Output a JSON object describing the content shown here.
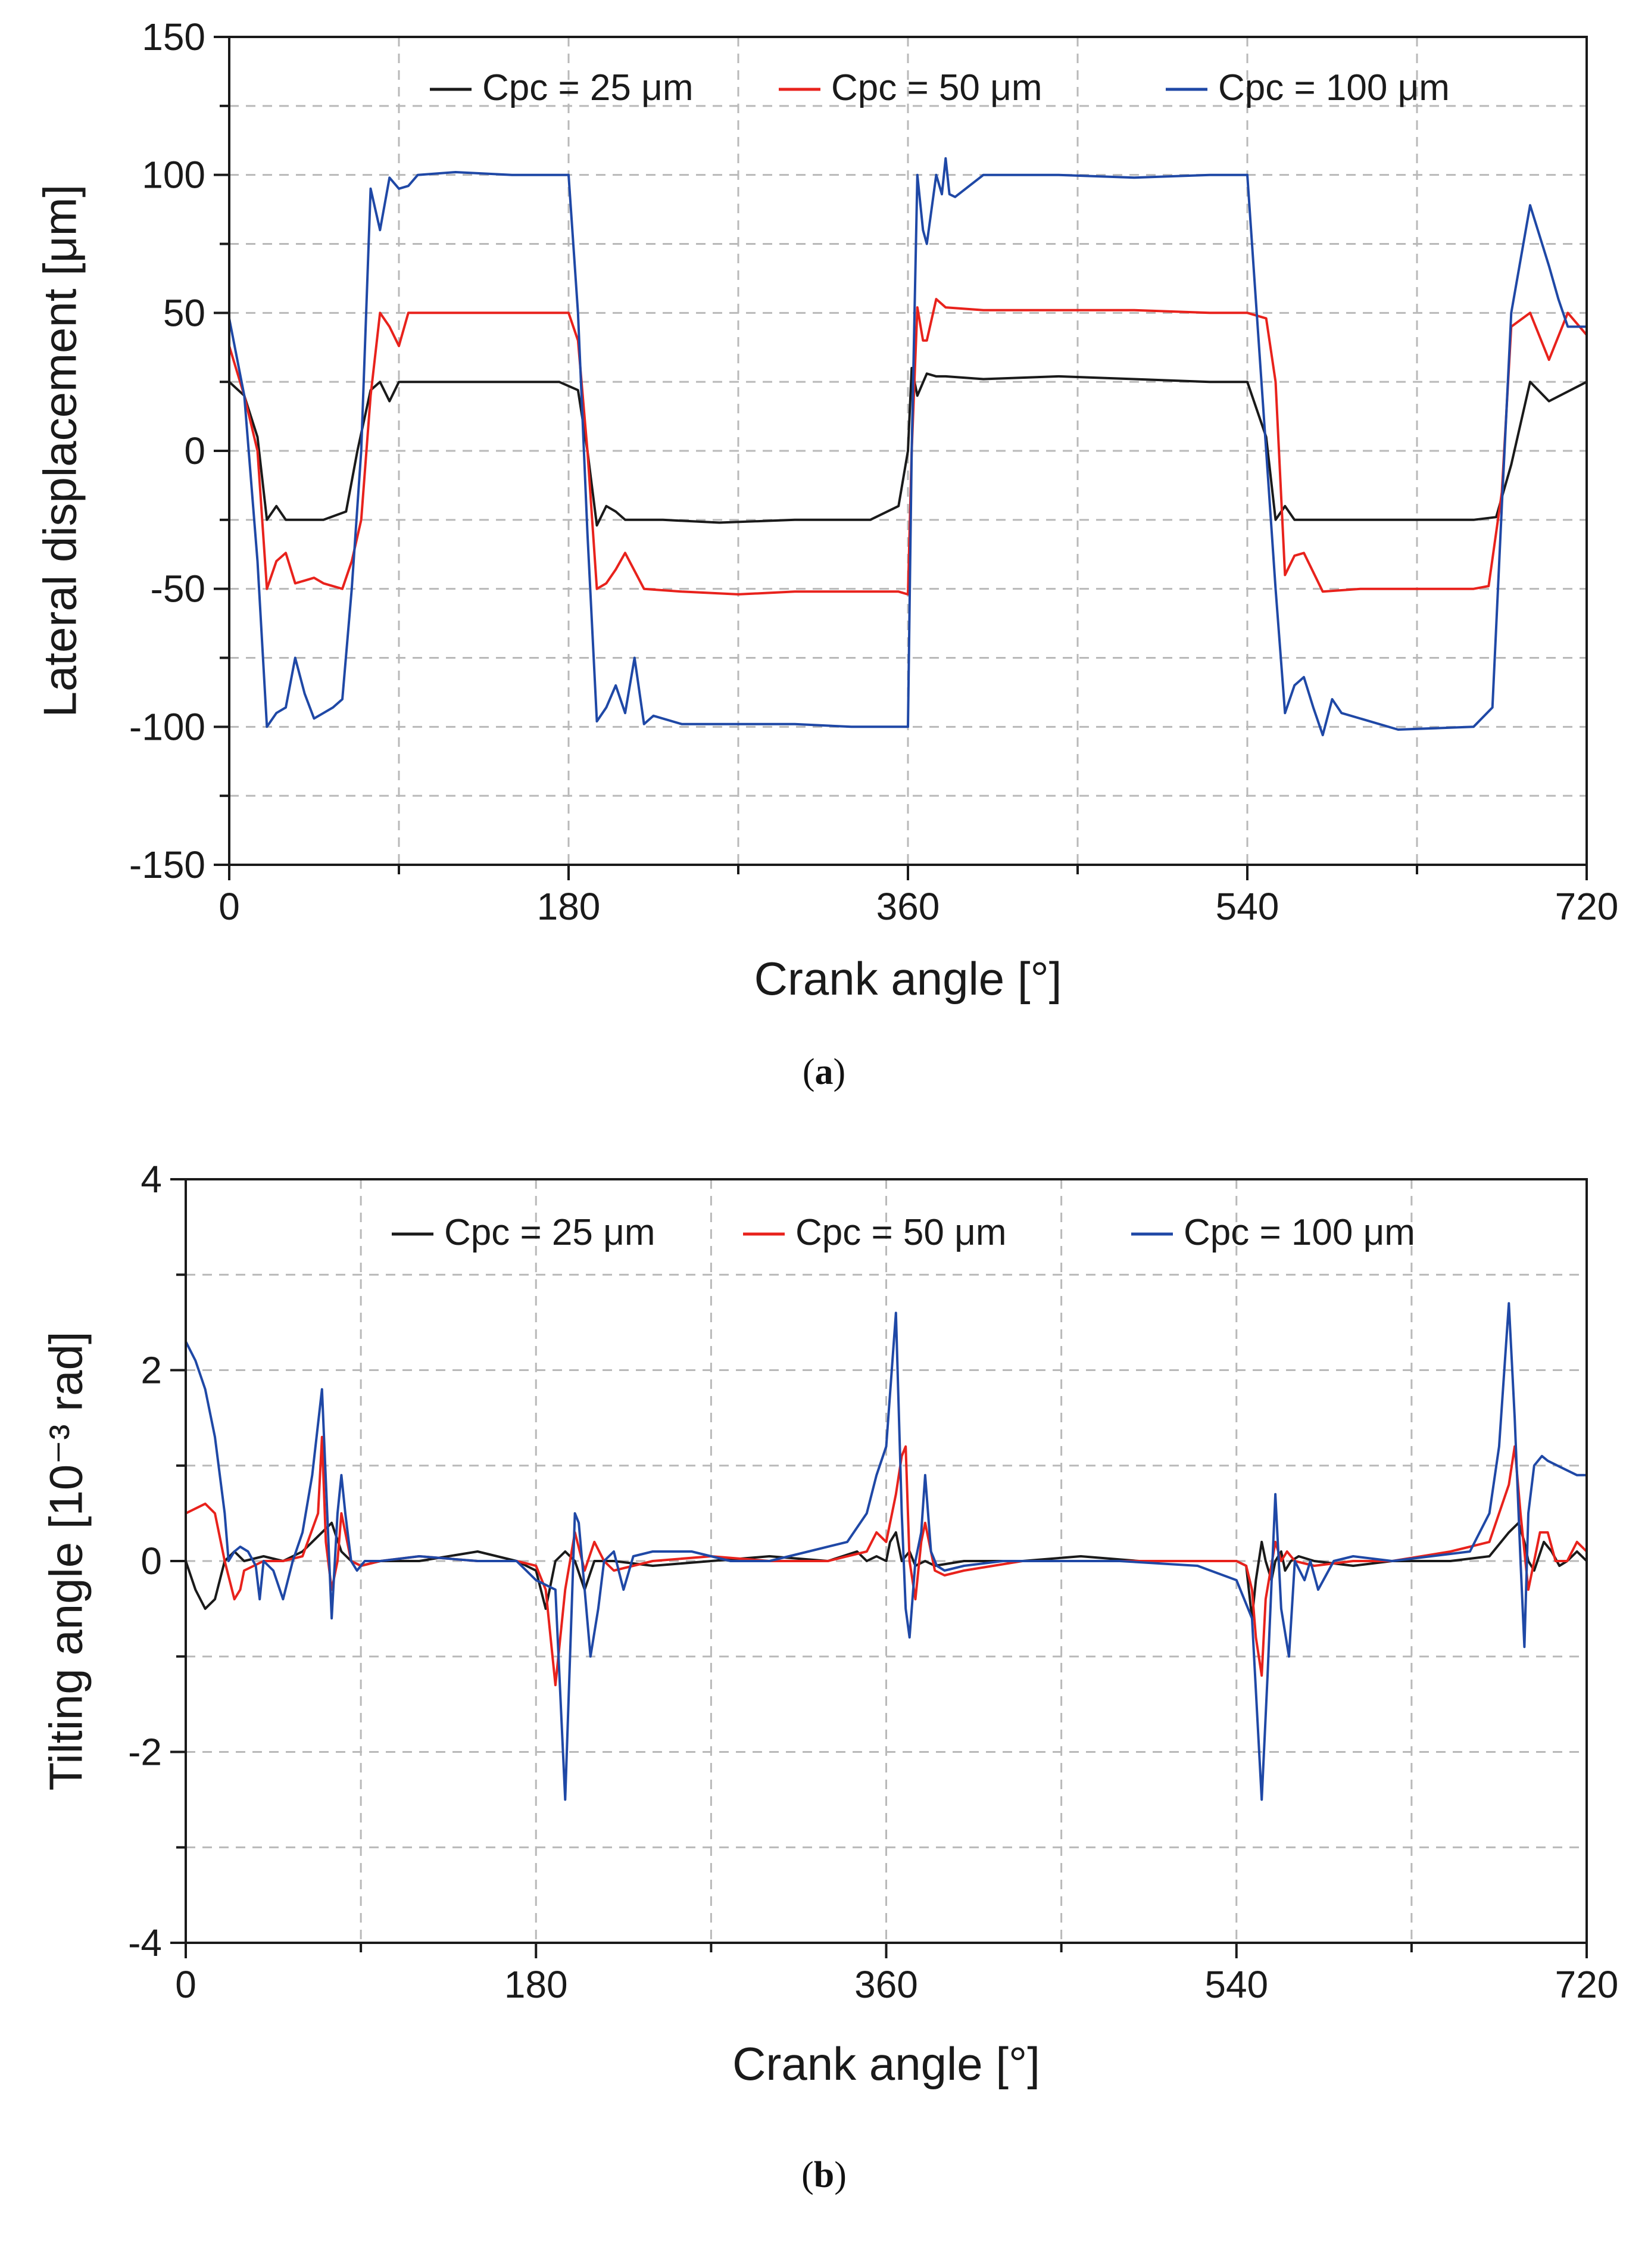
{
  "chart_data": [
    {
      "type": "line",
      "xlabel": "Crank angle [°]",
      "ylabel": "Lateral displacement [μm]",
      "caption_label": "a",
      "xlim": [
        0,
        720
      ],
      "ylim": [
        -150,
        150
      ],
      "xticks": [
        0,
        180,
        360,
        540,
        720
      ],
      "xtick_labels": [
        "0",
        "180",
        "360",
        "540",
        "720"
      ],
      "yticks": [
        -150,
        -100,
        -50,
        0,
        50,
        100,
        150
      ],
      "ytick_labels": [
        "-150",
        "-100",
        "-50",
        "0",
        "50",
        "100",
        "150"
      ],
      "grid": true,
      "legend": "top-center",
      "series": [
        {
          "name": "Cpc = 25 μm",
          "color": "#1a1a1a",
          "x": [
            0,
            8,
            15,
            20,
            25,
            30,
            40,
            50,
            62,
            68,
            75,
            80,
            85,
            90,
            120,
            150,
            175,
            185,
            190,
            195,
            200,
            205,
            210,
            230,
            260,
            300,
            340,
            355,
            360,
            362,
            365,
            370,
            375,
            380,
            400,
            440,
            480,
            520,
            540,
            550,
            555,
            560,
            565,
            570,
            580,
            620,
            660,
            672,
            680,
            690,
            700,
            720
          ],
          "y": [
            25,
            20,
            5,
            -25,
            -20,
            -25,
            -25,
            -25,
            -22,
            0,
            22,
            25,
            18,
            25,
            25,
            25,
            25,
            22,
            0,
            -27,
            -20,
            -22,
            -25,
            -25,
            -26,
            -25,
            -25,
            -20,
            0,
            30,
            20,
            28,
            27,
            27,
            26,
            27,
            26,
            25,
            25,
            5,
            -25,
            -20,
            -25,
            -25,
            -25,
            -25,
            -25,
            -24,
            -5,
            25,
            18,
            25
          ]
        },
        {
          "name": "Cpc = 50 μm",
          "color": "#e8221c",
          "x": [
            0,
            8,
            15,
            20,
            25,
            30,
            35,
            40,
            45,
            50,
            60,
            65,
            70,
            75,
            80,
            85,
            90,
            95,
            120,
            150,
            180,
            185,
            190,
            195,
            200,
            205,
            210,
            220,
            240,
            270,
            300,
            330,
            355,
            360,
            362,
            365,
            368,
            370,
            375,
            380,
            400,
            440,
            480,
            520,
            540,
            550,
            555,
            560,
            565,
            570,
            580,
            600,
            640,
            660,
            668,
            675,
            680,
            690,
            700,
            710,
            720
          ],
          "y": [
            38,
            20,
            0,
            -50,
            -40,
            -37,
            -48,
            -47,
            -46,
            -48,
            -50,
            -40,
            -25,
            20,
            50,
            45,
            38,
            50,
            50,
            50,
            50,
            40,
            0,
            -50,
            -48,
            -43,
            -37,
            -50,
            -51,
            -52,
            -51,
            -51,
            -51,
            -52,
            0,
            52,
            40,
            40,
            55,
            52,
            51,
            51,
            51,
            50,
            50,
            48,
            25,
            -45,
            -38,
            -37,
            -51,
            -50,
            -50,
            -50,
            -49,
            -15,
            45,
            50,
            33,
            50,
            42
          ]
        },
        {
          "name": "Cpc = 100 μm",
          "color": "#1f48a6",
          "x": [
            0,
            8,
            15,
            20,
            25,
            30,
            35,
            40,
            45,
            50,
            55,
            60,
            65,
            70,
            75,
            80,
            85,
            90,
            95,
            100,
            120,
            150,
            180,
            185,
            190,
            195,
            200,
            205,
            210,
            215,
            220,
            225,
            230,
            240,
            270,
            300,
            330,
            355,
            360,
            362,
            365,
            368,
            370,
            375,
            378,
            380,
            382,
            385,
            400,
            440,
            480,
            520,
            540,
            545,
            550,
            555,
            560,
            565,
            570,
            575,
            580,
            585,
            590,
            620,
            660,
            670,
            675,
            680,
            690,
            700,
            705,
            710,
            720
          ],
          "y": [
            48,
            20,
            -40,
            -100,
            -95,
            -93,
            -75,
            -88,
            -97,
            -95,
            -93,
            -90,
            -50,
            0,
            95,
            80,
            99,
            95,
            96,
            100,
            101,
            100,
            100,
            50,
            -30,
            -98,
            -93,
            -85,
            -95,
            -75,
            -99,
            -96,
            -97,
            -99,
            -99,
            -99,
            -100,
            -100,
            -100,
            0,
            100,
            80,
            75,
            100,
            93,
            106,
            93,
            92,
            100,
            100,
            99,
            100,
            100,
            50,
            0,
            -50,
            -95,
            -85,
            -82,
            -93,
            -103,
            -90,
            -95,
            -101,
            -100,
            -93,
            -20,
            50,
            89,
            67,
            55,
            45,
            45
          ]
        }
      ]
    },
    {
      "type": "line",
      "xlabel": "Crank angle [°]",
      "ylabel": "Tilting angle [10⁻³ rad]",
      "caption_label": "b",
      "xlim": [
        0,
        720
      ],
      "ylim": [
        -4,
        4
      ],
      "xticks": [
        0,
        180,
        360,
        540,
        720
      ],
      "xtick_labels": [
        "0",
        "180",
        "360",
        "540",
        "720"
      ],
      "yticks": [
        -4,
        -2,
        0,
        2,
        4
      ],
      "ytick_labels": [
        "-4",
        "-2",
        "0",
        "2",
        "4"
      ],
      "grid": true,
      "legend": "top-center",
      "series": [
        {
          "name": "Cpc = 25 μm",
          "color": "#1a1a1a",
          "x": [
            0,
            5,
            10,
            15,
            20,
            25,
            30,
            40,
            50,
            60,
            70,
            75,
            80,
            85,
            90,
            100,
            120,
            150,
            170,
            180,
            185,
            190,
            195,
            200,
            205,
            210,
            220,
            240,
            270,
            300,
            330,
            345,
            350,
            355,
            360,
            362,
            365,
            368,
            372,
            375,
            380,
            385,
            400,
            430,
            460,
            490,
            520,
            540,
            545,
            548,
            550,
            553,
            555,
            558,
            560,
            563,
            565,
            568,
            572,
            580,
            600,
            620,
            650,
            670,
            680,
            685,
            688,
            690,
            693,
            698,
            702,
            706,
            710,
            715,
            720
          ],
          "y": [
            0,
            -0.3,
            -0.5,
            -0.4,
            0,
            0.1,
            0,
            0.05,
            0,
            0.1,
            0.3,
            0.4,
            0.1,
            0,
            -0.05,
            0,
            0,
            0.1,
            0,
            -0.1,
            -0.5,
            0,
            0.1,
            0,
            -0.3,
            0,
            0,
            -0.05,
            0,
            0.05,
            0,
            0.1,
            0,
            0.05,
            0,
            0.2,
            0.3,
            0,
            0.1,
            -0.05,
            0,
            -0.05,
            0,
            0,
            0.05,
            0,
            0,
            0,
            -0.05,
            -0.6,
            -0.2,
            0.2,
            0,
            -0.2,
            0,
            0.1,
            -0.1,
            0,
            0.05,
            0,
            -0.05,
            0,
            0,
            0.05,
            0.3,
            0.4,
            0.2,
            0,
            -0.1,
            0.2,
            0.1,
            -0.05,
            0,
            0.1,
            0
          ]
        },
        {
          "name": "Cpc = 50 μm",
          "color": "#e8221c",
          "x": [
            0,
            10,
            15,
            20,
            25,
            28,
            30,
            40,
            50,
            60,
            68,
            70,
            72,
            75,
            78,
            80,
            85,
            90,
            100,
            120,
            150,
            170,
            180,
            185,
            190,
            195,
            200,
            205,
            210,
            215,
            220,
            240,
            270,
            300,
            330,
            350,
            355,
            360,
            365,
            368,
            370,
            372,
            375,
            378,
            380,
            385,
            390,
            400,
            430,
            460,
            490,
            520,
            540,
            545,
            548,
            550,
            553,
            555,
            560,
            563,
            566,
            570,
            580,
            600,
            620,
            650,
            670,
            675,
            680,
            683,
            686,
            690,
            693,
            696,
            700,
            704,
            710,
            715,
            720
          ],
          "y": [
            0.5,
            0.6,
            0.5,
            0,
            -0.4,
            -0.3,
            -0.1,
            0,
            0,
            0.05,
            0.5,
            1.3,
            0.2,
            -0.3,
            0,
            0.5,
            0,
            -0.05,
            0,
            0.05,
            0,
            0,
            -0.05,
            -0.3,
            -1.3,
            -0.3,
            0.3,
            -0.1,
            0.2,
            0,
            -0.1,
            0,
            0.05,
            0,
            0,
            0.1,
            0.3,
            0.2,
            0.7,
            1.1,
            1.2,
            0,
            -0.4,
            0.2,
            0.4,
            -0.1,
            -0.15,
            -0.1,
            0,
            0,
            0,
            0,
            0,
            -0.05,
            -0.3,
            -0.8,
            -1.2,
            -0.4,
            0.2,
            0,
            0.1,
            0,
            -0.05,
            0,
            0,
            0.1,
            0.2,
            0.5,
            0.8,
            1.2,
            0.5,
            -0.3,
            0,
            0.3,
            0.3,
            0,
            0,
            0.2,
            0.1
          ]
        },
        {
          "name": "Cpc = 100 μm",
          "color": "#1f48a6",
          "x": [
            0,
            5,
            10,
            15,
            20,
            22,
            25,
            28,
            32,
            36,
            38,
            40,
            45,
            50,
            55,
            60,
            65,
            70,
            75,
            78,
            80,
            82,
            85,
            88,
            92,
            100,
            120,
            150,
            170,
            180,
            190,
            195,
            200,
            202,
            205,
            208,
            212,
            215,
            220,
            225,
            230,
            240,
            260,
            280,
            300,
            320,
            340,
            350,
            355,
            360,
            365,
            368,
            370,
            372,
            375,
            378,
            380,
            383,
            386,
            390,
            400,
            420,
            440,
            480,
            520,
            540,
            548,
            553,
            556,
            560,
            563,
            567,
            570,
            575,
            578,
            582,
            590,
            600,
            620,
            640,
            660,
            670,
            675,
            680,
            683,
            686,
            688,
            690,
            693,
            697,
            700,
            705,
            710,
            715,
            720
          ],
          "y": [
            2.3,
            2.1,
            1.8,
            1.3,
            0.5,
            0,
            0.1,
            0.15,
            0.1,
            -0.05,
            -0.4,
            0,
            -0.1,
            -0.4,
            0,
            0.3,
            0.9,
            1.8,
            -0.6,
            0.5,
            0.9,
            0.5,
            0,
            -0.1,
            0,
            0,
            0.05,
            0,
            0,
            -0.2,
            -0.3,
            -2.5,
            0.5,
            0.4,
            -0.3,
            -1,
            -0.5,
            0,
            0.1,
            -0.3,
            0.05,
            0.1,
            0.1,
            0,
            0,
            0.1,
            0.2,
            0.5,
            0.9,
            1.2,
            2.6,
            0.5,
            -0.5,
            -0.8,
            0,
            0.3,
            0.9,
            0.1,
            -0.05,
            -0.1,
            -0.05,
            0,
            0,
            0,
            -0.05,
            -0.2,
            -0.6,
            -2.5,
            -1.2,
            0.7,
            -0.5,
            -1,
            0,
            -0.2,
            0,
            -0.3,
            0,
            0.05,
            0,
            0.05,
            0.1,
            0.5,
            1.2,
            2.7,
            1.5,
            0,
            -0.9,
            0.5,
            1,
            1.1,
            1.05,
            1,
            0.95,
            0.9,
            0.9
          ]
        }
      ]
    }
  ]
}
